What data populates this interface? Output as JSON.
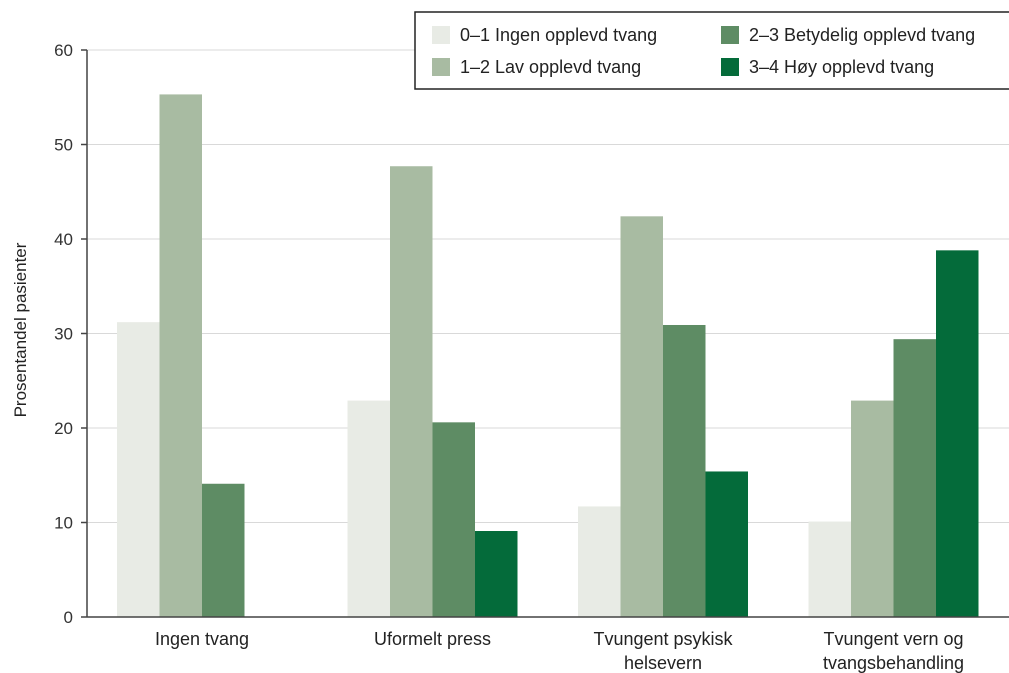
{
  "chart_data": {
    "type": "bar",
    "title": "",
    "xlabel": "",
    "ylabel": "Prosentandel pasienter",
    "ylim": [
      0,
      60
    ],
    "yticks": [
      0,
      10,
      20,
      30,
      40,
      50,
      60
    ],
    "grid": true,
    "legend_position": "top-right",
    "categories": [
      [
        "Ingen tvang"
      ],
      [
        "Uformelt press"
      ],
      [
        "Tvungent psykisk",
        "helsevern"
      ],
      [
        "Tvungent vern og",
        "tvangsbehandling"
      ]
    ],
    "series": [
      {
        "name": "0–1 Ingen opplevd tvang",
        "color": "#e8ebe5",
        "values": [
          31.2,
          22.9,
          11.7,
          10.1
        ]
      },
      {
        "name": "1–2 Lav opplevd tvang",
        "color": "#a8bba2",
        "values": [
          55.3,
          47.7,
          42.4,
          22.9
        ]
      },
      {
        "name": "2–3 Betydelig opplevd tvang",
        "color": "#5e8c64",
        "values": [
          14.1,
          20.6,
          30.9,
          29.4
        ]
      },
      {
        "name": "3–4 Høy opplevd tvang",
        "color": "#046b3a",
        "values": [
          null,
          9.1,
          15.4,
          38.8
        ]
      }
    ]
  }
}
